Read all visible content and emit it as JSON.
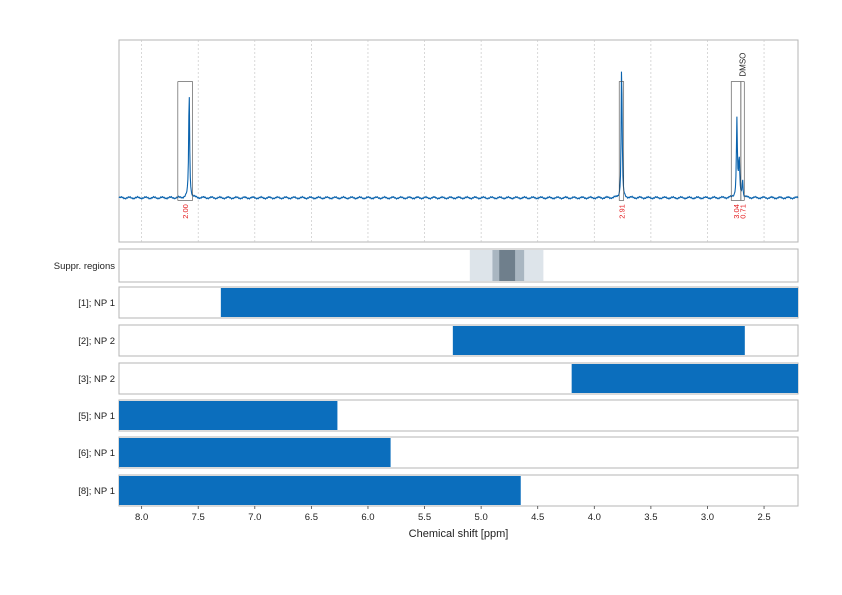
{
  "chart_data": {
    "type": "nmr_spectrum_with_region_bars",
    "x_axis": {
      "label": "Chemical shift [ppm]",
      "range": [
        8.2,
        2.2
      ],
      "reversed": true,
      "ticks": [
        8.0,
        7.5,
        7.0,
        6.5,
        6.0,
        5.5,
        5.0,
        4.5,
        4.0,
        3.5,
        3.0,
        2.5
      ],
      "tick_labels": [
        "8.0",
        "7.5",
        "7.0",
        "6.5",
        "6.0",
        "5.5",
        "5.0",
        "4.5",
        "4.0",
        "3.5",
        "3.0",
        "2.5"
      ]
    },
    "spectrum": {
      "color": "#0b63ad",
      "y_range": [
        -0.35,
        1.25
      ],
      "peaks": [
        {
          "ppm": 7.58,
          "height": 0.86,
          "width": 0.005
        },
        {
          "ppm": 3.76,
          "height": 0.82,
          "width": 0.004
        },
        {
          "ppm": 3.755,
          "height": 0.45,
          "width": 0.004
        },
        {
          "ppm": 2.74,
          "height": 0.62,
          "width": 0.005
        },
        {
          "ppm": 2.72,
          "height": 0.3,
          "width": 0.006
        },
        {
          "ppm": 2.69,
          "height": 0.15,
          "width": 0.004
        }
      ],
      "integration_regions": [
        {
          "from": 7.68,
          "to": 7.55,
          "y_top": 0.92,
          "label": "2.00"
        },
        {
          "from": 3.78,
          "to": 3.74,
          "y_top": 0.92,
          "label": "2.91"
        },
        {
          "from": 2.79,
          "to": 2.705,
          "y_top": 0.92,
          "label": "3.04"
        },
        {
          "from": 2.705,
          "to": 2.675,
          "y_top": 0.92,
          "label": "0.71"
        }
      ],
      "annotations": [
        {
          "ppm": 2.69,
          "text": "DMSO"
        }
      ]
    },
    "suppression_regions": {
      "label": "Suppr. regions",
      "outer": {
        "from": 5.1,
        "to": 4.45,
        "color": "#dde4ea"
      },
      "middle": {
        "from": 4.9,
        "to": 4.62,
        "color": "#a9b6c1"
      },
      "inner": {
        "from": 4.84,
        "to": 4.7,
        "color": "#6f7f8c"
      }
    },
    "region_bars": [
      {
        "label": "[1]; NP 1",
        "from": 7.3,
        "to": 2.2
      },
      {
        "label": "[2]; NP 2",
        "from": 5.25,
        "to": 2.67
      },
      {
        "label": "[3]; NP 2",
        "from": 4.2,
        "to": 2.2
      },
      {
        "label": "[5]; NP 1",
        "from": 8.2,
        "to": 6.27
      },
      {
        "label": "[6]; NP 1",
        "from": 8.2,
        "to": 5.8
      },
      {
        "label": "[8]; NP 1",
        "from": 8.2,
        "to": 4.65
      }
    ],
    "bar_color": "#0b6ebd",
    "grid": true
  }
}
